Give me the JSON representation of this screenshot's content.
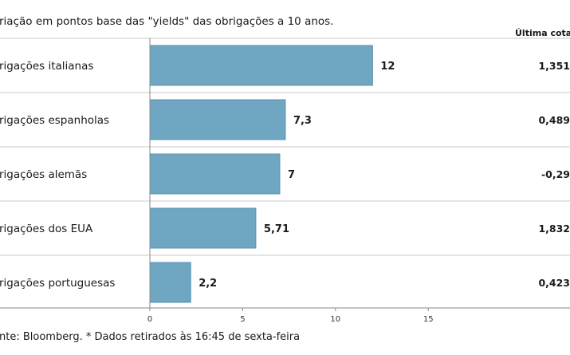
{
  "subtitle": "riação em pontos base das \"yields\" das obrigações a 10 anos.",
  "column_header": "Última cotaç",
  "footnote": "nte: Bloomberg.  * Dados retirados às 16:45 de sexta-feira",
  "colors": {
    "bar": "#6fa6c2",
    "bar_stroke": "#5a93b0",
    "separator": "#c8c8c8",
    "axis": "#888888"
  },
  "chart_data": {
    "type": "bar",
    "orientation": "horizontal",
    "categories": [
      "rigações italianas",
      "rigações espanholas",
      "rigações alemãs",
      "rigações dos EUA",
      "rigações portuguesas"
    ],
    "values": [
      12,
      7.3,
      7,
      5.71,
      2.2
    ],
    "value_labels": [
      "12",
      "7,3",
      "7",
      "5,71",
      "2,2"
    ],
    "last_quotes": [
      "1,351",
      "0,489",
      "-0,29",
      "1,832",
      "0,423"
    ],
    "xlim": [
      0,
      15
    ],
    "ticks": [
      0,
      5,
      10,
      15
    ],
    "tick_labels": [
      "0",
      "5",
      "10",
      "15"
    ],
    "grid": false
  }
}
